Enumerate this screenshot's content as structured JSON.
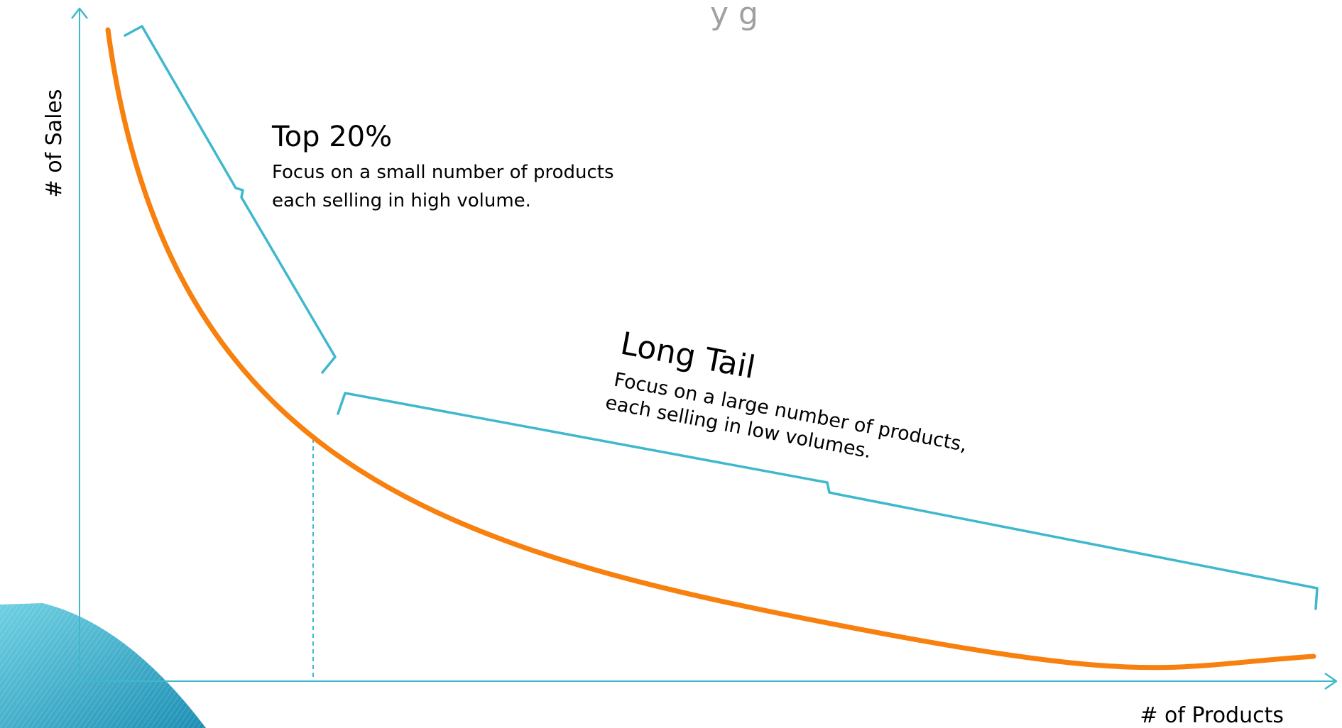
{
  "colors": {
    "curve": "#f7800f",
    "bracket": "#3fb8cd",
    "axis": "#3fb8cd",
    "divider": "#3fb8cd",
    "deco": "#2ba8c6"
  },
  "slide": {
    "partial_heading": "y                                  g"
  },
  "axes": {
    "y_label": "# of Sales",
    "x_label": "# of Products"
  },
  "annotations": {
    "head": {
      "title": "Top 20%",
      "line1": "Focus on a small number of products",
      "line2": "each selling in high volume."
    },
    "tail": {
      "title": "Long Tail",
      "line1": "Focus on a large number of products,",
      "line2": "each selling in low volumes."
    }
  }
}
